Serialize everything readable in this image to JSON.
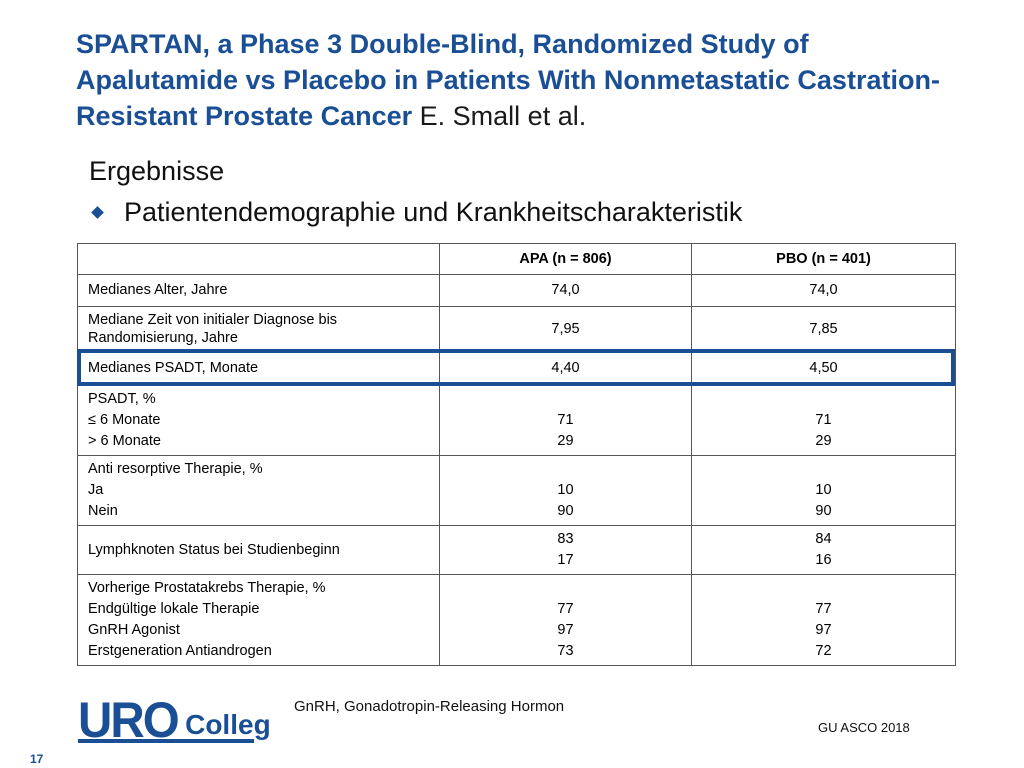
{
  "title": {
    "main": "SPARTAN, a Phase 3 Double-Blind, Randomized Study of Apalutamide vs Placebo in Patients With Nonmetastatic Castration-Resistant Prostate Cancer",
    "author": "E. Small et al."
  },
  "section_heading": "Ergebnisse",
  "bullet": "Patientendemographie und Krankheitscharakteristik",
  "table": {
    "headers": [
      "",
      "APA (n = 806)",
      "PBO (n = 401)"
    ],
    "rows": [
      {
        "label": "Medianes Alter, Jahre",
        "apa": "74,0",
        "pbo": "74,0"
      },
      {
        "label": "Mediane Zeit von initialer Diagnose bis Randomisierung, Jahre",
        "apa": "7,95",
        "pbo": "7,85"
      },
      {
        "label": "Medianes PSADT, Monate",
        "apa": "4,40",
        "pbo": "4,50",
        "highlighted": true
      },
      {
        "label_lines": [
          "PSADT, %",
          "≤ 6 Monate",
          "> 6 Monate"
        ],
        "apa_lines": [
          "71",
          "29"
        ],
        "pbo_lines": [
          "71",
          "29"
        ]
      },
      {
        "label_lines": [
          "Anti resorptive Therapie, %",
          "Ja",
          "Nein"
        ],
        "apa_lines": [
          "10",
          "90"
        ],
        "pbo_lines": [
          "10",
          "90"
        ]
      },
      {
        "label": "Lymphknoten Status bei Studienbeginn",
        "apa_lines": [
          "83",
          "17"
        ],
        "pbo_lines": [
          "84",
          "16"
        ]
      },
      {
        "label_lines": [
          "Vorherige Prostatakrebs Therapie, %",
          "Endgültige lokale Therapie",
          "GnRH Agonist",
          "Erstgeneration Antiandrogen"
        ],
        "apa_lines": [
          "77",
          "97",
          "73"
        ],
        "pbo_lines": [
          "77",
          "97",
          "72"
        ]
      }
    ]
  },
  "logo": {
    "part1": "URO",
    "part2": "Colleg"
  },
  "footnote": "GnRH, Gonadotropin-Releasing Hormon",
  "source": "GU ASCO 2018",
  "page_number": "17",
  "colors": {
    "brand_blue": "#1a4f96"
  }
}
